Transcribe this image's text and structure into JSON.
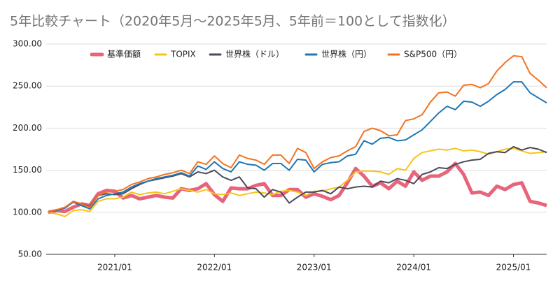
{
  "chart_data": {
    "type": "line",
    "title": "5年比較チャート（2020年5月〜2025年5月、5年前＝100として指数化）",
    "categories": [
      null,
      null,
      null,
      null,
      null,
      null,
      null,
      null,
      "2021/01",
      null,
      null,
      null,
      null,
      null,
      null,
      null,
      null,
      null,
      null,
      null,
      "2022/01",
      null,
      null,
      null,
      null,
      null,
      null,
      null,
      null,
      null,
      null,
      null,
      "2023/01",
      null,
      null,
      null,
      null,
      null,
      null,
      null,
      null,
      null,
      null,
      null,
      "2024/01",
      null,
      null,
      null,
      null,
      null,
      null,
      null,
      null,
      null,
      null,
      null,
      "2025/01",
      null,
      null,
      null,
      null
    ],
    "series": [
      {
        "name": "基準価額",
        "color": "#e8647a",
        "values": [
          100,
          102,
          101,
          106,
          110,
          108,
          122,
          126,
          125,
          117,
          120,
          116,
          118,
          120,
          118,
          117,
          128,
          126,
          128,
          134,
          121,
          113,
          129,
          128,
          128,
          132,
          134,
          120,
          120,
          127,
          127,
          118,
          122,
          119,
          115,
          120,
          135,
          152,
          143,
          131,
          135,
          128,
          137,
          131,
          148,
          138,
          143,
          143,
          148,
          158,
          145,
          123,
          124,
          120,
          131,
          127,
          133,
          135,
          113,
          111,
          108
        ]
      },
      {
        "name": "TOPIX",
        "color": "#f6c51b",
        "values": [
          100,
          98,
          95,
          102,
          103,
          101,
          113,
          116,
          116,
          118,
          124,
          121,
          123,
          124,
          122,
          125,
          128,
          126,
          124,
          127,
          122,
          121,
          123,
          120,
          122,
          124,
          123,
          121,
          125,
          126,
          124,
          120,
          125,
          125,
          128,
          130,
          138,
          148,
          149,
          149,
          148,
          145,
          152,
          150,
          164,
          171,
          173,
          175,
          174,
          176,
          173,
          174,
          172,
          169,
          172,
          175,
          176,
          173,
          170,
          171,
          172
        ]
      },
      {
        "name": "世界株（ドル）",
        "color": "#4a4a5c",
        "values": [
          100,
          103,
          105,
          113,
          110,
          107,
          120,
          122,
          121,
          122,
          128,
          133,
          137,
          139,
          141,
          143,
          146,
          142,
          148,
          146,
          150,
          142,
          138,
          142,
          129,
          128,
          118,
          127,
          124,
          111,
          118,
          124,
          124,
          126,
          122,
          130,
          128,
          130,
          131,
          130,
          137,
          135,
          140,
          138,
          134,
          145,
          148,
          153,
          152,
          157,
          160,
          162,
          163,
          170,
          172,
          171,
          178,
          174,
          177,
          175,
          171
        ]
      },
      {
        "name": "世界株（円）",
        "color": "#1f77b4",
        "values": [
          100,
          102,
          105,
          112,
          108,
          104,
          116,
          120,
          122,
          124,
          130,
          134,
          137,
          140,
          142,
          144,
          147,
          143,
          155,
          151,
          160,
          152,
          148,
          160,
          157,
          156,
          150,
          158,
          158,
          150,
          163,
          162,
          148,
          157,
          159,
          160,
          167,
          169,
          185,
          181,
          188,
          189,
          185,
          186,
          192,
          198,
          208,
          218,
          226,
          222,
          232,
          231,
          226,
          232,
          240,
          246,
          255,
          255,
          242,
          236,
          230
        ]
      },
      {
        "name": "S&P500（円）",
        "color": "#f4731f",
        "values": [
          100,
          103,
          106,
          113,
          110,
          106,
          120,
          124,
          125,
          127,
          133,
          136,
          140,
          142,
          145,
          147,
          150,
          146,
          160,
          157,
          167,
          158,
          153,
          168,
          164,
          162,
          157,
          168,
          168,
          158,
          176,
          171,
          152,
          160,
          165,
          167,
          173,
          178,
          196,
          200,
          197,
          191,
          192,
          209,
          211,
          216,
          231,
          242,
          243,
          238,
          251,
          252,
          248,
          253,
          268,
          278,
          286,
          285,
          265,
          257,
          248
        ]
      }
    ],
    "ylim": [
      50,
      300
    ],
    "yticks": [
      {
        "value": 50,
        "label": "50.00"
      },
      {
        "value": 100,
        "label": "100.00"
      },
      {
        "value": 150,
        "label": "150.00"
      },
      {
        "value": 200,
        "label": "200.00"
      },
      {
        "value": 250,
        "label": "250.00"
      },
      {
        "value": 300,
        "label": "300.00"
      }
    ],
    "grid": true,
    "legend": "top"
  }
}
